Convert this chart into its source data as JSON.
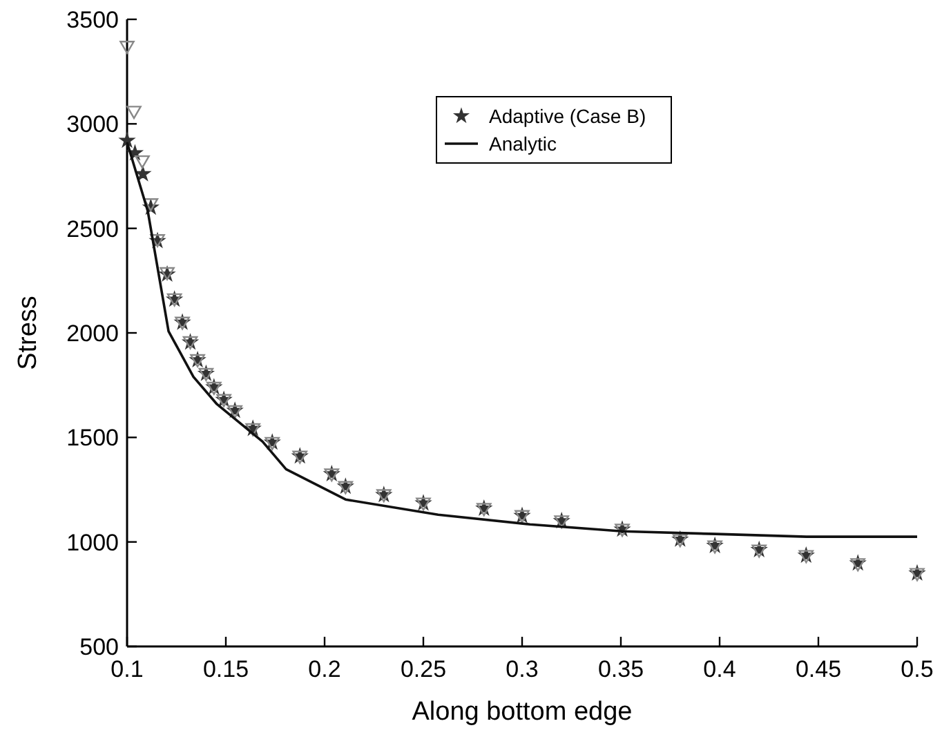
{
  "chart_data": {
    "type": "scatter",
    "xlabel": "Along bottom edge",
    "ylabel": "Stress",
    "xlim": [
      0.1,
      0.5
    ],
    "ylim": [
      500,
      3500
    ],
    "xticks": [
      0.1,
      0.15,
      0.2,
      0.25,
      0.3,
      0.35,
      0.4,
      0.45,
      0.5
    ],
    "yticks": [
      500,
      1000,
      1500,
      2000,
      2500,
      3000,
      3500
    ],
    "grid": false,
    "legend": "top right",
    "series": [
      {
        "name": "Adaptive (Case B)",
        "marker": "star",
        "color": "#333333",
        "x": [
          0.1,
          0.104,
          0.108,
          0.112,
          0.1154,
          0.1203,
          0.124,
          0.128,
          0.132,
          0.1357,
          0.14,
          0.144,
          0.149,
          0.1546,
          0.1637,
          0.1735,
          0.1875,
          0.2036,
          0.2106,
          0.23,
          0.25,
          0.2807,
          0.3,
          0.32,
          0.3507,
          0.38,
          0.3976,
          0.42,
          0.4438,
          0.47,
          0.5
        ],
        "values": [
          2920,
          2860,
          2760,
          2600,
          2440,
          2280,
          2160,
          2050,
          1955,
          1870,
          1805,
          1740,
          1680,
          1628,
          1542,
          1476,
          1410,
          1325,
          1265,
          1225,
          1185,
          1160,
          1125,
          1100,
          1060,
          1012,
          982,
          962,
          935,
          898,
          850
        ]
      },
      {
        "marker": "triangle",
        "color": "#888888",
        "x": [
          0.1,
          0.1035,
          0.1077,
          0.112,
          0.1154,
          0.1203,
          0.124,
          0.128,
          0.132,
          0.1357,
          0.14,
          0.144,
          0.149,
          0.1546,
          0.1637,
          0.1735,
          0.1875,
          0.2036,
          0.2106,
          0.23,
          0.25,
          0.2807,
          0.3,
          0.32,
          0.3507,
          0.38,
          0.3976,
          0.42,
          0.4438,
          0.47,
          0.5
        ],
        "values": [
          3375,
          3064,
          2827,
          2622,
          2450,
          2292,
          2167,
          2055,
          1962,
          1876,
          1810,
          1744,
          1685,
          1632,
          1546,
          1480,
          1414,
          1329,
          1269,
          1230,
          1190,
          1164,
          1130,
          1105,
          1065,
          1015,
          985,
          965,
          939,
          900,
          853
        ]
      },
      {
        "name": "Analytic",
        "type": "line",
        "marker": "none",
        "line_style": "solid",
        "color": "#111111",
        "x": [
          0.1,
          0.1105,
          0.121,
          0.1336,
          0.1455,
          0.1686,
          0.1805,
          0.2106,
          0.2575,
          0.304,
          0.3507,
          0.398,
          0.444,
          0.5
        ],
        "values": [
          2912,
          2582,
          2008,
          1790,
          1659,
          1480,
          1348,
          1203,
          1130,
          1084,
          1051,
          1038,
          1025,
          1025
        ]
      }
    ]
  }
}
